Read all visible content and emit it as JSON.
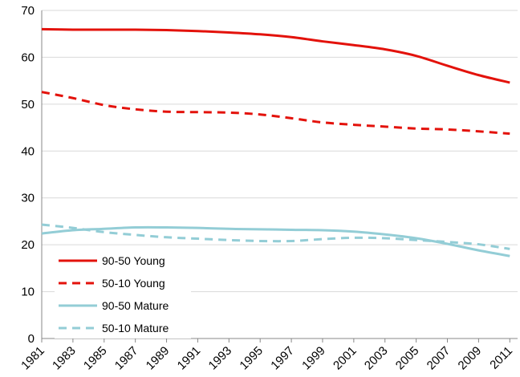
{
  "chart_data": {
    "type": "line",
    "title": "",
    "xlabel": "",
    "ylabel": "",
    "x": [
      1981,
      1983,
      1985,
      1987,
      1989,
      1991,
      1993,
      1995,
      1997,
      1999,
      2001,
      2003,
      2005,
      2007,
      2009,
      2011
    ],
    "x_tick_labels": [
      "1981",
      "1983",
      "1985",
      "1987",
      "1989",
      "1991",
      "1993",
      "1995",
      "1997",
      "1999",
      "2001",
      "2003",
      "2005",
      "2007",
      "2009",
      "2011"
    ],
    "xlim": [
      1981,
      2011.5
    ],
    "ylim": [
      0,
      70
    ],
    "y_ticks": [
      0,
      10,
      20,
      30,
      40,
      50,
      60,
      70
    ],
    "y_tick_labels": [
      "0",
      "10",
      "20",
      "30",
      "40",
      "50",
      "60",
      "70"
    ],
    "grid": "horizontal",
    "legend_placement": "bottom-left",
    "series": [
      {
        "name": "90-50 Young",
        "color": "#e3120b",
        "dash": "solid",
        "values": [
          66.0,
          65.9,
          65.9,
          65.9,
          65.8,
          65.6,
          65.3,
          64.9,
          64.3,
          63.4,
          62.6,
          61.7,
          60.3,
          58.2,
          56.2,
          54.6
        ]
      },
      {
        "name": "50-10 Young",
        "color": "#e3120b",
        "dash": "dashed",
        "values": [
          52.6,
          51.3,
          49.8,
          48.9,
          48.4,
          48.3,
          48.2,
          47.8,
          47.0,
          46.1,
          45.6,
          45.2,
          44.8,
          44.6,
          44.2,
          43.7
        ]
      },
      {
        "name": "90-50 Mature",
        "color": "#93cdd6",
        "dash": "solid",
        "values": [
          22.4,
          23.1,
          23.4,
          23.7,
          23.7,
          23.6,
          23.4,
          23.3,
          23.2,
          23.1,
          22.8,
          22.2,
          21.4,
          20.2,
          18.8,
          17.6
        ]
      },
      {
        "name": "50-10 Mature",
        "color": "#93cdd6",
        "dash": "dashed",
        "values": [
          24.3,
          23.6,
          22.7,
          22.1,
          21.6,
          21.3,
          21.0,
          20.8,
          20.8,
          21.2,
          21.5,
          21.4,
          21.0,
          20.6,
          20.1,
          19.1
        ]
      }
    ]
  }
}
